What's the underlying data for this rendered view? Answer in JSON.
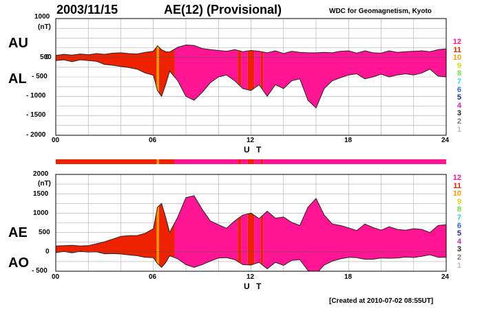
{
  "header": {
    "date": "2003/11/15",
    "title": "AE(12) (Provisional)",
    "source": "WDC for Geomagnetism, Kyoto",
    "created": "[Created at 2010-07-02 08:55UT]"
  },
  "chart_data": [
    {
      "type": "area",
      "name": "AU/AL",
      "upper_label": "AU",
      "lower_label": "AL",
      "unit_label": "(nT)",
      "x_label": "U T",
      "x_ticks": [
        "00",
        "06",
        "12",
        "18",
        "24"
      ],
      "y_ticks": [
        "1000",
        "500",
        "0",
        "- 500",
        "- 1000",
        "- 1500",
        "- 2000"
      ],
      "ylim": [
        -2000,
        1000
      ],
      "xlim": [
        0,
        24
      ],
      "x_hours": [
        0,
        0.5,
        1,
        1.5,
        2,
        2.5,
        3,
        3.5,
        4,
        4.5,
        5,
        5.5,
        6,
        6.25,
        6.5,
        6.75,
        7,
        7.5,
        8,
        8.5,
        9,
        9.5,
        10,
        10.5,
        11,
        11.5,
        12,
        12.5,
        13,
        13.5,
        14,
        14.5,
        15,
        15.5,
        16,
        16.5,
        17,
        17.5,
        18,
        18.5,
        19,
        19.5,
        20,
        20.5,
        21,
        21.5,
        22,
        22.5,
        23,
        23.5,
        24
      ],
      "au": [
        50,
        80,
        60,
        90,
        70,
        100,
        80,
        110,
        120,
        100,
        90,
        130,
        160,
        300,
        200,
        150,
        140,
        260,
        320,
        310,
        230,
        200,
        180,
        160,
        200,
        150,
        180,
        160,
        120,
        170,
        100,
        160,
        130,
        120,
        120,
        130,
        120,
        160,
        170,
        110,
        170,
        120,
        110,
        170,
        130,
        150,
        160,
        170,
        150,
        200,
        220
      ],
      "al": [
        -80,
        -60,
        -110,
        -60,
        -80,
        -100,
        -180,
        -200,
        -230,
        -260,
        -300,
        -400,
        -460,
        -850,
        -1000,
        -700,
        -350,
        -600,
        -1000,
        -1100,
        -900,
        -650,
        -500,
        -450,
        -600,
        -800,
        -850,
        -700,
        -1000,
        -700,
        -800,
        -600,
        -550,
        -1100,
        -1300,
        -800,
        -600,
        -520,
        -450,
        -420,
        -550,
        -500,
        -430,
        -500,
        -450,
        -420,
        -450,
        -400,
        -300,
        -480,
        -500
      ]
    },
    {
      "type": "area",
      "name": "AE/AO",
      "upper_label": "AE",
      "lower_label": "AO",
      "unit_label": "(nT)",
      "x_label": "U T",
      "x_ticks": [
        "00",
        "06",
        "12",
        "18",
        "24"
      ],
      "y_ticks": [
        "2000",
        "1500",
        "1000",
        "500",
        "0",
        "- 500"
      ],
      "ylim": [
        -500,
        2000
      ],
      "xlim": [
        0,
        24
      ],
      "x_hours": [
        0,
        0.5,
        1,
        1.5,
        2,
        2.5,
        3,
        3.5,
        4,
        4.5,
        5,
        5.5,
        6,
        6.25,
        6.5,
        6.75,
        7,
        7.5,
        8,
        8.5,
        9,
        9.5,
        10,
        10.5,
        11,
        11.5,
        12,
        12.5,
        13,
        13.5,
        14,
        14.5,
        15,
        15.5,
        16,
        16.5,
        17,
        17.5,
        18,
        18.5,
        19,
        19.5,
        20,
        20.5,
        21,
        21.5,
        22,
        22.5,
        23,
        23.5,
        24
      ],
      "ae": [
        150,
        160,
        170,
        150,
        160,
        210,
        260,
        330,
        400,
        420,
        420,
        480,
        600,
        1150,
        1250,
        900,
        500,
        900,
        1400,
        1450,
        1100,
        800,
        700,
        610,
        800,
        950,
        1000,
        860,
        1050,
        870,
        900,
        760,
        680,
        1150,
        1380,
        950,
        720,
        680,
        620,
        550,
        720,
        630,
        560,
        650,
        580,
        560,
        600,
        580,
        500,
        680,
        700
      ],
      "ao": [
        -20,
        10,
        -25,
        15,
        -5,
        0,
        -50,
        -45,
        -55,
        -80,
        -100,
        -140,
        -150,
        -300,
        -400,
        -280,
        -100,
        -180,
        -330,
        -400,
        -330,
        -240,
        -160,
        -150,
        -200,
        -330,
        -340,
        -270,
        -440,
        -270,
        -350,
        -220,
        -200,
        -480,
        -570,
        -340,
        -240,
        -180,
        -140,
        -150,
        -190,
        -190,
        -160,
        -165,
        -160,
        -135,
        -145,
        -115,
        -75,
        -140,
        -140
      ]
    }
  ],
  "station_legend": {
    "labels": [
      "12",
      "11",
      "10",
      "9",
      "8",
      "7",
      "6",
      "5",
      "4",
      "3",
      "2",
      "1"
    ],
    "colors": [
      "#ff1493",
      "#ee2200",
      "#ff9900",
      "#dddd00",
      "#66ee33",
      "#22dddd",
      "#2266ff",
      "#2222aa",
      "#cc22cc",
      "#222222",
      "#777777",
      "#bbbbbb"
    ]
  },
  "station_bar": [
    {
      "from": 0,
      "to": 6.2,
      "stations": "11"
    },
    {
      "from": 6.2,
      "to": 6.35,
      "stations": "10"
    },
    {
      "from": 6.35,
      "to": 7.3,
      "stations": "11"
    },
    {
      "from": 7.3,
      "to": 11.2,
      "stations": "12"
    },
    {
      "from": 11.2,
      "to": 11.4,
      "stations": "11"
    },
    {
      "from": 11.4,
      "to": 11.8,
      "stations": "12"
    },
    {
      "from": 11.8,
      "to": 12.2,
      "stations": "11"
    },
    {
      "from": 12.2,
      "to": 12.6,
      "stations": "12"
    },
    {
      "from": 12.6,
      "to": 12.75,
      "stations": "11"
    },
    {
      "from": 12.75,
      "to": 24,
      "stations": "12"
    }
  ]
}
